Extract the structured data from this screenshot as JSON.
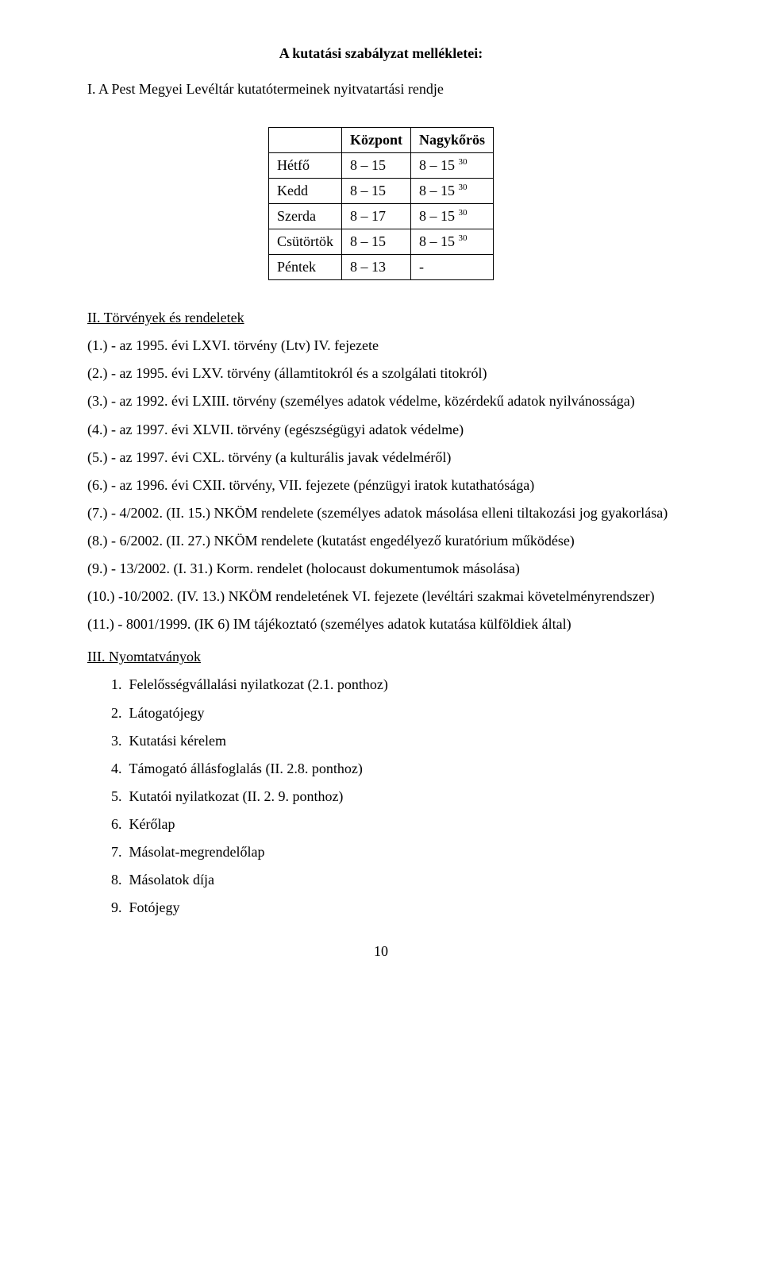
{
  "title": "A kutatási szabályzat mellékletei:",
  "section1_heading": "I. A Pest Megyei Levéltár kutatótermeinek nyitvatartási rendje",
  "table": {
    "col1_header": "",
    "col2_header": "Központ",
    "col3_header": "Nagykőrös",
    "rows": [
      {
        "day": "Hétfő",
        "kozpont": "8 – 15",
        "nagykoros": "8 – 15",
        "sup": "30"
      },
      {
        "day": "Kedd",
        "kozpont": "8 – 15",
        "nagykoros": "8 – 15",
        "sup": "30"
      },
      {
        "day": "Szerda",
        "kozpont": "8 – 17",
        "nagykoros": "8 – 15",
        "sup": "30"
      },
      {
        "day": "Csütörtök",
        "kozpont": "8 – 15",
        "nagykoros": "8 – 15",
        "sup": "30"
      },
      {
        "day": "Péntek",
        "kozpont": "8 – 13",
        "nagykoros": "-",
        "sup": ""
      }
    ]
  },
  "section2_heading": "II. Törvények és rendeletek",
  "laws": [
    "(1.) - az 1995. évi LXVI. törvény (Ltv) IV. fejezete",
    "(2.) - az 1995. évi LXV. törvény (államtitokról és a szolgálati titokról)",
    "(3.) - az 1992. évi LXIII. törvény (személyes adatok védelme, közérdekű adatok nyilvánossága)",
    "(4.) - az 1997. évi XLVII. törvény (egészségügyi adatok védelme)",
    "(5.) - az 1997. évi CXL. törvény (a kulturális javak védelméről)",
    "(6.) - az 1996. évi CXII. törvény, VII. fejezete (pénzügyi iratok kutathatósága)",
    "(7.) - 4/2002. (II. 15.) NKÖM rendelete (személyes adatok másolása elleni tiltakozási jog gyakorlása)",
    "(8.) - 6/2002. (II. 27.) NKÖM rendelete (kutatást engedélyező kuratórium működése)",
    "(9.) - 13/2002. (I. 31.) Korm. rendelet (holocaust dokumentumok másolása)",
    "(10.) -10/2002. (IV. 13.) NKÖM rendeletének VI. fejezete (levéltári szakmai követelményrendszer)",
    "(11.) - 8001/1999. (IK 6) IM tájékoztató (személyes adatok kutatása külföldiek által)"
  ],
  "section3_heading": "III. Nyomtatványok",
  "forms": [
    {
      "num": "1.",
      "text": "Felelősségvállalási nyilatkozat (2.1. ponthoz)"
    },
    {
      "num": "2.",
      "text": "Látogatójegy"
    },
    {
      "num": "3.",
      "text": "Kutatási kérelem"
    },
    {
      "num": "4.",
      "text": "Támogató állásfoglalás (II. 2.8. ponthoz)"
    },
    {
      "num": "5.",
      "text": "Kutatói nyilatkozat (II. 2. 9. ponthoz)"
    },
    {
      "num": "6.",
      "text": "Kérőlap"
    },
    {
      "num": "7.",
      "text": "Másolat-megrendelőlap"
    },
    {
      "num": "8.",
      "text": "Másolatok díja"
    },
    {
      "num": "9.",
      "text": "Fotójegy"
    }
  ],
  "page_number": "10"
}
